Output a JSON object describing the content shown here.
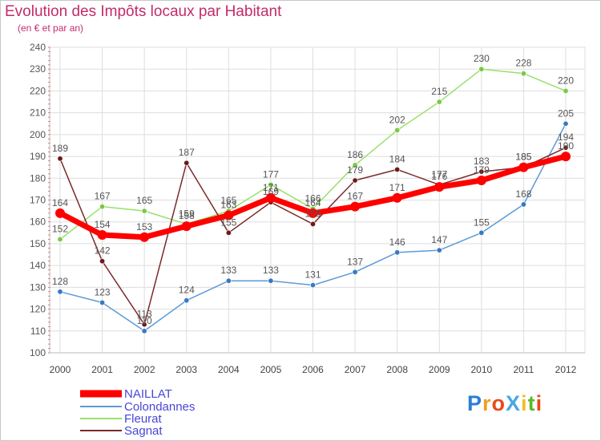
{
  "title": "Evolution des Impôts locaux par Habitant",
  "subtitle": "(en € et par an)",
  "logo": {
    "text": "ProXiti",
    "letters": [
      "P",
      "r",
      "o",
      "X",
      "i",
      "t",
      "i"
    ],
    "colors": [
      "#2a7fd4",
      "#f0a020",
      "#e84a1a",
      "#4aa8e0",
      "#f0c020",
      "#5cb82c",
      "#e84a1a"
    ]
  },
  "chart_data": {
    "type": "line",
    "title": "Evolution des Impôts locaux par Habitant",
    "subtitle": "(en € et par an)",
    "xlabel": "",
    "ylabel": "",
    "x": [
      "2000",
      "2001",
      "2002",
      "2003",
      "2004",
      "2005",
      "2006",
      "2007",
      "2008",
      "2009",
      "2010",
      "2011",
      "2012"
    ],
    "ylim": [
      100,
      240
    ],
    "yticks": [
      100,
      110,
      120,
      130,
      140,
      150,
      160,
      170,
      180,
      190,
      200,
      210,
      220,
      230,
      240
    ],
    "grid": true,
    "legend_position": "bottom-left",
    "series": [
      {
        "name": "Colondannes",
        "color": "#5b9bd5",
        "dot": "#3a78c2",
        "width": "thin",
        "values": [
          128,
          123,
          110,
          124,
          133,
          133,
          131,
          137,
          146,
          147,
          155,
          168,
          205
        ],
        "labels": [
          "128",
          "123",
          "110",
          "124",
          "133",
          "133",
          "131",
          "137",
          "146",
          "147",
          "155",
          "168",
          "205"
        ]
      },
      {
        "name": "Fleurat",
        "color": "#99e06a",
        "dot": "#7ac943",
        "width": "thin",
        "values": [
          152,
          167,
          165,
          159,
          165,
          177,
          166,
          186,
          202,
          215,
          230,
          228,
          220
        ],
        "labels": [
          "152",
          "167",
          "165",
          "159",
          "165",
          "177",
          "166",
          "186",
          "202",
          "215",
          "230",
          "228",
          "220"
        ]
      },
      {
        "name": "Sagnat",
        "color": "#7a2a2a",
        "dot": "#6b1a1a",
        "width": "thin",
        "values": [
          189,
          142,
          113,
          187,
          155,
          169,
          159,
          179,
          184,
          177,
          183,
          185,
          194
        ],
        "labels": [
          "189",
          "142",
          "113",
          "187",
          "155",
          "169",
          "159",
          "179",
          "184",
          "177",
          "183",
          "185",
          "194"
        ]
      },
      {
        "name": "NAILLAT",
        "color": "#ff0000",
        "dot": "#ff0000",
        "width": "thick",
        "values": [
          164,
          154,
          153,
          158,
          163,
          171,
          164,
          167,
          171,
          176,
          179,
          185,
          190
        ],
        "labels": [
          "164",
          "154",
          "153",
          "158",
          "163",
          "171",
          "164",
          "167",
          "171",
          "176",
          "179",
          "185",
          "190"
        ]
      }
    ],
    "legend": [
      "NAILLAT",
      "Colondannes",
      "Fleurat",
      "Sagnat"
    ]
  }
}
